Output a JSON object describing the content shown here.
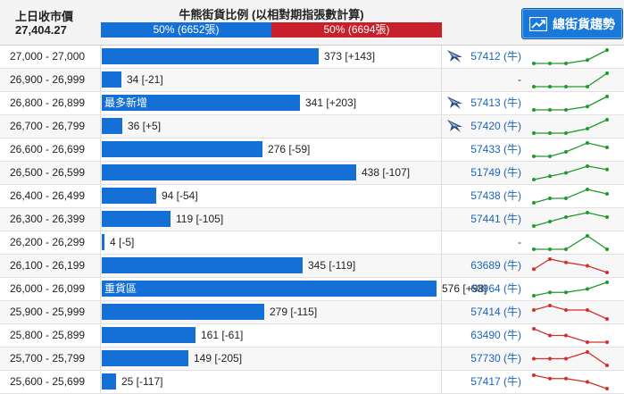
{
  "header": {
    "prev_close_label": "上日收市價",
    "prev_close_value": "27,404.27",
    "ratio_title": "牛熊街貨比例 (以相對期指張數計算)",
    "bull_ratio": "50% (6652張)",
    "bear_ratio": "50% (6694張)",
    "bull_fraction": 0.5,
    "trend_button_label": "總街貨趨勢",
    "bull_color": "#1470d6",
    "bear_color": "#c8202a"
  },
  "rows": [
    {
      "range": "27,000 - 27,000",
      "count": "373 [+143]",
      "qty": 373,
      "code": "57412 (牛)",
      "flag": true,
      "trend": "up",
      "series": [
        1,
        1,
        1,
        2,
        5
      ]
    },
    {
      "range": "26,900 - 26,999",
      "count": "34 [-21]",
      "qty": 34,
      "code": "-",
      "flag": false,
      "trend": "up",
      "series": [
        1,
        1,
        1,
        1,
        3
      ]
    },
    {
      "range": "26,800 - 26,899",
      "count": "341 [+203]",
      "qty": 341,
      "label": "最多新增",
      "code": "57413 (牛)",
      "flag": true,
      "trend": "up",
      "series": [
        1,
        1,
        1,
        2,
        5
      ]
    },
    {
      "range": "26,700 - 26,799",
      "count": "36 [+5]",
      "qty": 36,
      "code": "57420 (牛)",
      "flag": true,
      "trend": "up",
      "series": [
        1,
        1,
        1,
        2,
        4
      ]
    },
    {
      "range": "26,600 - 26,699",
      "count": "276 [-59]",
      "qty": 276,
      "code": "57433 (牛)",
      "flag": false,
      "trend": "up",
      "series": [
        1,
        1,
        2,
        4,
        3
      ]
    },
    {
      "range": "26,500 - 26,599",
      "count": "438 [-107]",
      "qty": 438,
      "code": "51749 (牛)",
      "flag": false,
      "trend": "up",
      "series": [
        1,
        2,
        3,
        5,
        4
      ]
    },
    {
      "range": "26,400 - 26,499",
      "count": "94 [-54]",
      "qty": 94,
      "code": "57438 (牛)",
      "flag": false,
      "trend": "up",
      "series": [
        1,
        2,
        2,
        4,
        3
      ]
    },
    {
      "range": "26,300 - 26,399",
      "count": "119 [-105]",
      "qty": 119,
      "code": "57441 (牛)",
      "flag": false,
      "trend": "up",
      "series": [
        1,
        2,
        3,
        4,
        3
      ]
    },
    {
      "range": "26,200 - 26,299",
      "count": "4 [-5]",
      "qty": 4,
      "code": "-",
      "flag": false,
      "trend": "up",
      "series": [
        1,
        1,
        1,
        3,
        1
      ]
    },
    {
      "range": "26,100 - 26,199",
      "count": "345 [-119]",
      "qty": 345,
      "code": "63689 (牛)",
      "flag": false,
      "trend": "down",
      "series": [
        2,
        5,
        4,
        3,
        1
      ]
    },
    {
      "range": "26,000 - 26,099",
      "count": "576 [+98]",
      "qty": 576,
      "label": "重貨區",
      "code": "63964 (牛)",
      "flag": false,
      "trend": "up",
      "series": [
        1,
        2,
        2,
        3,
        5
      ]
    },
    {
      "range": "25,900 - 25,999",
      "count": "279 [-115]",
      "qty": 279,
      "code": "57414 (牛)",
      "flag": false,
      "trend": "down",
      "series": [
        4,
        5,
        4,
        4,
        2
      ]
    },
    {
      "range": "25,800 - 25,899",
      "count": "161 [-61]",
      "qty": 161,
      "code": "63490 (牛)",
      "flag": false,
      "trend": "down",
      "series": [
        5,
        4,
        4,
        3,
        3
      ]
    },
    {
      "range": "25,700 - 25,799",
      "count": "149 [-205]",
      "qty": 149,
      "code": "57730 (牛)",
      "flag": false,
      "trend": "down",
      "series": [
        3,
        3,
        3,
        5,
        1
      ]
    },
    {
      "range": "25,600 - 25,699",
      "count": "25 [-117]",
      "qty": 25,
      "code": "57417 (牛)",
      "flag": false,
      "trend": "down",
      "series": [
        5,
        4,
        4,
        3,
        1
      ]
    }
  ],
  "colors": {
    "bar": "#1470d6",
    "up": "#1f9a2e",
    "down": "#d0312d",
    "code_link": "#1a64b8"
  },
  "icons": {
    "trend_button": "line-chart-icon",
    "flag": "stingray-flag-icon"
  }
}
